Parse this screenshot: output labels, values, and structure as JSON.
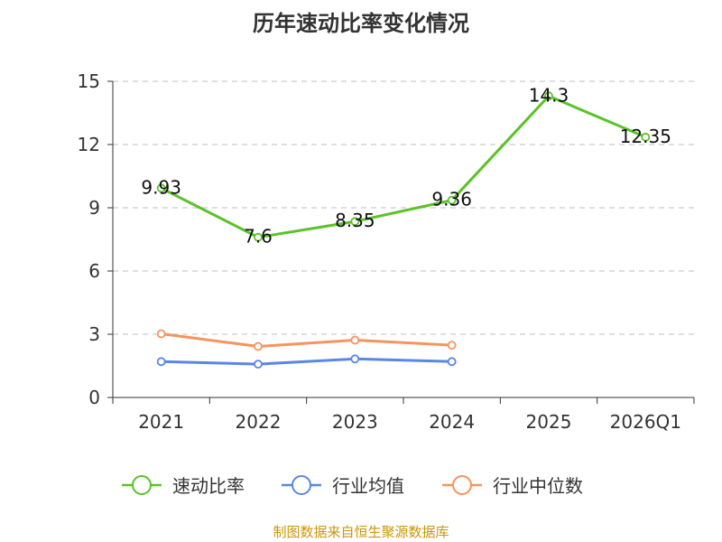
{
  "chart_data": {
    "type": "line",
    "title": "历年速动比率变化情况",
    "categories": [
      "2021",
      "2022",
      "2023",
      "2024",
      "2025",
      "2026Q1"
    ],
    "ylim": [
      0,
      15
    ],
    "yticks": [
      "0",
      "3",
      "6",
      "9",
      "12",
      "15"
    ],
    "grid": true,
    "legend_position": "bottom",
    "series": [
      {
        "name": "速动比率",
        "color": "#5bc228",
        "values": [
          9.93,
          7.6,
          8.35,
          9.36,
          14.3,
          12.35
        ],
        "labels": [
          "9.93",
          "7.6",
          "8.35",
          "9.36",
          "14.3",
          "12.35"
        ]
      },
      {
        "name": "行业均值",
        "color": "#5b86e5",
        "values": [
          1.7,
          1.58,
          1.83,
          1.7,
          null,
          null
        ]
      },
      {
        "name": "行业中位数",
        "color": "#f7935f",
        "values": [
          3.02,
          2.42,
          2.72,
          2.48,
          null,
          null
        ]
      }
    ],
    "source": "制图数据来自恒生聚源数据库"
  }
}
